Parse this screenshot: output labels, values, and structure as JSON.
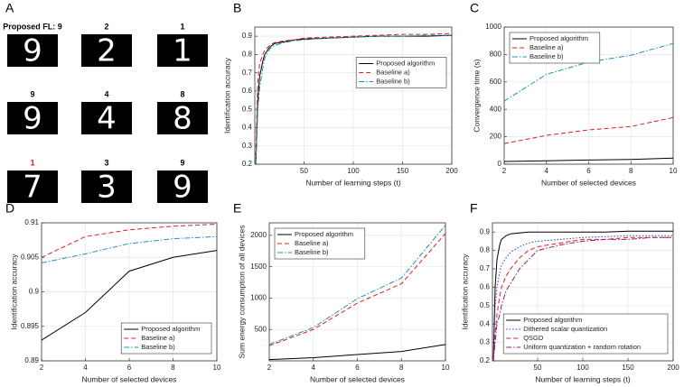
{
  "chart_data": [
    {
      "type": "images",
      "panel_label": "A",
      "captions": [
        "Proposed FL: 9",
        "2",
        "1",
        "9",
        "4",
        "8",
        "1",
        "3",
        "9"
      ],
      "caption_colors": [
        "#000000",
        "#000000",
        "#000000",
        "#000000",
        "#000000",
        "#000000",
        "#e41a1c",
        "#000000",
        "#000000"
      ],
      "digits": [
        "9",
        "2",
        "1",
        "9",
        "4",
        "8",
        "7",
        "3",
        "9"
      ]
    },
    {
      "type": "line",
      "panel_label": "B",
      "xlabel": "Number of learning steps (t)",
      "ylabel": "Identification accuracy",
      "x": [
        1,
        3,
        5,
        8,
        10,
        15,
        20,
        30,
        40,
        50,
        75,
        100,
        125,
        150,
        175,
        200
      ],
      "xlim": [
        0,
        200
      ],
      "xticks": [
        50,
        100,
        150,
        200
      ],
      "ylim": [
        0.2,
        0.95
      ],
      "yticks": [
        0.2,
        0.3,
        0.4,
        0.5,
        0.6,
        0.7,
        0.8,
        0.9
      ],
      "grid": true,
      "legend": "upper right",
      "series": [
        {
          "name": "Proposed algorithm",
          "color": "#000000",
          "style": "solid",
          "values": [
            0.2,
            0.55,
            0.68,
            0.76,
            0.8,
            0.84,
            0.86,
            0.87,
            0.88,
            0.885,
            0.89,
            0.895,
            0.9,
            0.9,
            0.9,
            0.905
          ]
        },
        {
          "name": "Baseline a)",
          "color": "#e41a1c",
          "style": "dashed",
          "values": [
            0.25,
            0.65,
            0.75,
            0.8,
            0.82,
            0.85,
            0.865,
            0.875,
            0.88,
            0.89,
            0.895,
            0.9,
            0.905,
            0.91,
            0.91,
            0.915
          ]
        },
        {
          "name": "Baseline b)",
          "color": "#1f8fbf",
          "style": "dashdot",
          "values": [
            0.2,
            0.5,
            0.62,
            0.72,
            0.78,
            0.83,
            0.85,
            0.865,
            0.875,
            0.88,
            0.89,
            0.895,
            0.9,
            0.9,
            0.905,
            0.905
          ]
        }
      ]
    },
    {
      "type": "line",
      "panel_label": "C",
      "xlabel": "Number of selected devices",
      "ylabel": "Convergence time (s)",
      "x": [
        2,
        4,
        6,
        8,
        10
      ],
      "xlim": [
        2,
        10
      ],
      "xticks": [
        2,
        4,
        6,
        8,
        10
      ],
      "ylim": [
        0,
        1000
      ],
      "yticks": [
        0,
        200,
        400,
        600,
        800,
        1000
      ],
      "grid": true,
      "legend": "upper left",
      "series": [
        {
          "name": "Proposed algorithm",
          "color": "#000000",
          "style": "solid",
          "values": [
            20,
            25,
            30,
            35,
            45
          ]
        },
        {
          "name": "Baseline a)",
          "color": "#e41a1c",
          "style": "dashed",
          "values": [
            150,
            210,
            250,
            275,
            340
          ]
        },
        {
          "name": "Baseline b)",
          "color": "#1f8fbf",
          "style": "dashdot",
          "values": [
            460,
            655,
            745,
            795,
            880
          ]
        }
      ]
    },
    {
      "type": "line",
      "panel_label": "D",
      "xlabel": "Number of selected devices",
      "ylabel": "Identification accuracy",
      "x": [
        2,
        4,
        6,
        8,
        10
      ],
      "xlim": [
        2,
        10
      ],
      "xticks": [
        2,
        4,
        6,
        8,
        10
      ],
      "ylim": [
        0.89,
        0.91
      ],
      "yticks": [
        0.89,
        0.895,
        0.9,
        0.905,
        0.91
      ],
      "grid": true,
      "legend": "lower right",
      "series": [
        {
          "name": "Proposed algorithm",
          "color": "#000000",
          "style": "solid",
          "values": [
            0.893,
            0.897,
            0.903,
            0.905,
            0.906
          ]
        },
        {
          "name": "Baseline a)",
          "color": "#e41a1c",
          "style": "dashed",
          "values": [
            0.905,
            0.908,
            0.909,
            0.9095,
            0.9098
          ]
        },
        {
          "name": "Baseline b)",
          "color": "#1f8fbf",
          "style": "dashdot",
          "values": [
            0.9042,
            0.9055,
            0.907,
            0.9077,
            0.908
          ]
        }
      ]
    },
    {
      "type": "line",
      "panel_label": "E",
      "xlabel": "Number of selected devices",
      "ylabel": "Sum energy consumption of all devices",
      "x": [
        2,
        4,
        6,
        8,
        10
      ],
      "xlim": [
        2,
        10
      ],
      "xticks": [
        2,
        4,
        6,
        8,
        10
      ],
      "ylim": [
        0,
        2200
      ],
      "yticks": [
        500,
        1000,
        1500,
        2000
      ],
      "grid": true,
      "legend": "upper left",
      "series": [
        {
          "name": "Proposed algorithm",
          "color": "#000000",
          "style": "solid",
          "values": [
            20,
            50,
            100,
            150,
            260
          ]
        },
        {
          "name": "Baseline a)",
          "color": "#e41a1c",
          "style": "dashed",
          "values": [
            240,
            500,
            920,
            1230,
            2030
          ]
        },
        {
          "name": "Baseline b)",
          "color": "#1f8fbf",
          "style": "dashdot",
          "values": [
            260,
            530,
            990,
            1320,
            2160
          ]
        }
      ]
    },
    {
      "type": "line",
      "panel_label": "F",
      "xlabel": "Number of learning steps (t)",
      "ylabel": "Identification accuracy",
      "x": [
        1,
        3,
        5,
        8,
        10,
        15,
        20,
        30,
        40,
        50,
        75,
        100,
        125,
        150,
        175,
        200
      ],
      "xlim": [
        0,
        200
      ],
      "xticks": [
        50,
        100,
        150,
        200
      ],
      "ylim": [
        0.2,
        0.95
      ],
      "yticks": [
        0.2,
        0.3,
        0.4,
        0.5,
        0.6,
        0.7,
        0.8,
        0.9
      ],
      "grid": true,
      "legend": "lower right",
      "series": [
        {
          "name": "Proposed algorithm",
          "color": "#000000",
          "style": "solid",
          "values": [
            0.2,
            0.6,
            0.75,
            0.83,
            0.86,
            0.88,
            0.89,
            0.895,
            0.9,
            0.9,
            0.9,
            0.9,
            0.9,
            0.905,
            0.905,
            0.905
          ]
        },
        {
          "name": "Dithered scalar quantization",
          "color": "#1f3fd0",
          "style": "dotted",
          "values": [
            0.2,
            0.5,
            0.6,
            0.68,
            0.72,
            0.76,
            0.79,
            0.82,
            0.84,
            0.85,
            0.86,
            0.87,
            0.875,
            0.88,
            0.88,
            0.88
          ]
        },
        {
          "name": "QSGD",
          "color": "#e41a1c",
          "style": "dashed",
          "values": [
            0.2,
            0.35,
            0.45,
            0.55,
            0.6,
            0.66,
            0.7,
            0.76,
            0.8,
            0.82,
            0.84,
            0.86,
            0.86,
            0.87,
            0.87,
            0.87
          ]
        },
        {
          "name": "Uniform quantization + random rotation",
          "color": "#9b1c6e",
          "style": "dashdot",
          "values": [
            0.2,
            0.3,
            0.4,
            0.45,
            0.5,
            0.58,
            0.62,
            0.7,
            0.75,
            0.8,
            0.83,
            0.85,
            0.86,
            0.86,
            0.87,
            0.87
          ]
        }
      ]
    }
  ]
}
